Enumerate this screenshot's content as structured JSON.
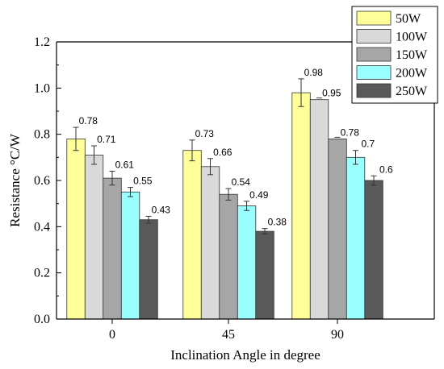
{
  "chart_data": {
    "type": "bar",
    "xlabel": "Inclination Angle in degree",
    "ylabel": "Resistance °C/W",
    "categories": [
      "0",
      "45",
      "90"
    ],
    "ylim": [
      0,
      1.2
    ],
    "yticks": [
      "0.0",
      "0.2",
      "0.4",
      "0.6",
      "0.8",
      "1.0",
      "1.2"
    ],
    "grid": false,
    "legend_position": "top-right",
    "series": [
      {
        "name": "50W",
        "color": "#ffff99",
        "values": [
          0.78,
          0.73,
          0.98
        ],
        "labels": [
          "0.78",
          "0.73",
          "0.98"
        ],
        "errors": [
          0.05,
          0.045,
          0.06
        ]
      },
      {
        "name": "100W",
        "color": "#d9d9d9",
        "values": [
          0.71,
          0.66,
          0.95
        ],
        "labels": [
          "0.71",
          "0.66",
          "0.95"
        ],
        "errors": [
          0.04,
          0.035,
          0.0
        ]
      },
      {
        "name": "150W",
        "color": "#a6a6a6",
        "values": [
          0.61,
          0.54,
          0.78
        ],
        "labels": [
          "0.61",
          "0.54",
          "0.78"
        ],
        "errors": [
          0.03,
          0.025,
          0.0
        ]
      },
      {
        "name": "200W",
        "color": "#99ffff",
        "values": [
          0.55,
          0.49,
          0.7
        ],
        "labels": [
          "0.55",
          "0.49",
          "0.7"
        ],
        "errors": [
          0.02,
          0.02,
          0.03
        ]
      },
      {
        "name": "250W",
        "color": "#595959",
        "values": [
          0.43,
          0.38,
          0.6
        ],
        "labels": [
          "0.43",
          "0.38",
          "0.6"
        ],
        "errors": [
          0.015,
          0.012,
          0.02
        ]
      }
    ]
  }
}
